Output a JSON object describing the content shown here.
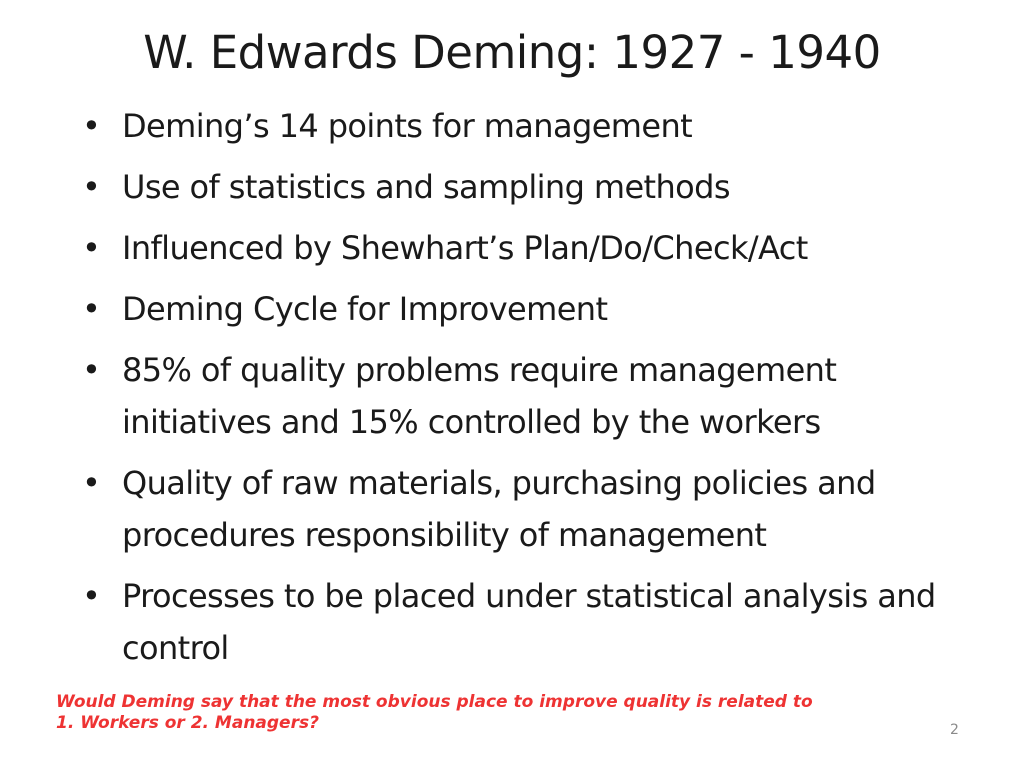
{
  "slide": {
    "title": "W. Edwards Deming: 1927 - 1940",
    "bullet_marker": "•",
    "bullets": [
      "Deming’s 14 points for management",
      "Use of statistics and sampling methods",
      "Influenced by Shewhart’s Plan/Do/Check/Act",
      "Deming Cycle for Improvement",
      "85% of quality problems require management initiatives and 15% controlled by the workers",
      "Quality of raw materials, purchasing policies and procedures responsibility of management",
      "Processes to be placed under statistical analysis and control"
    ],
    "question_line1": "Would Deming say that the most obvious place to improve quality is related to",
    "question_line2": "1. Workers or 2. Managers?",
    "page_number": "2",
    "colors": {
      "text": "#1a1a1a",
      "question": "#ee3333",
      "page_number": "#8a8a8a",
      "background": "#ffffff"
    }
  }
}
